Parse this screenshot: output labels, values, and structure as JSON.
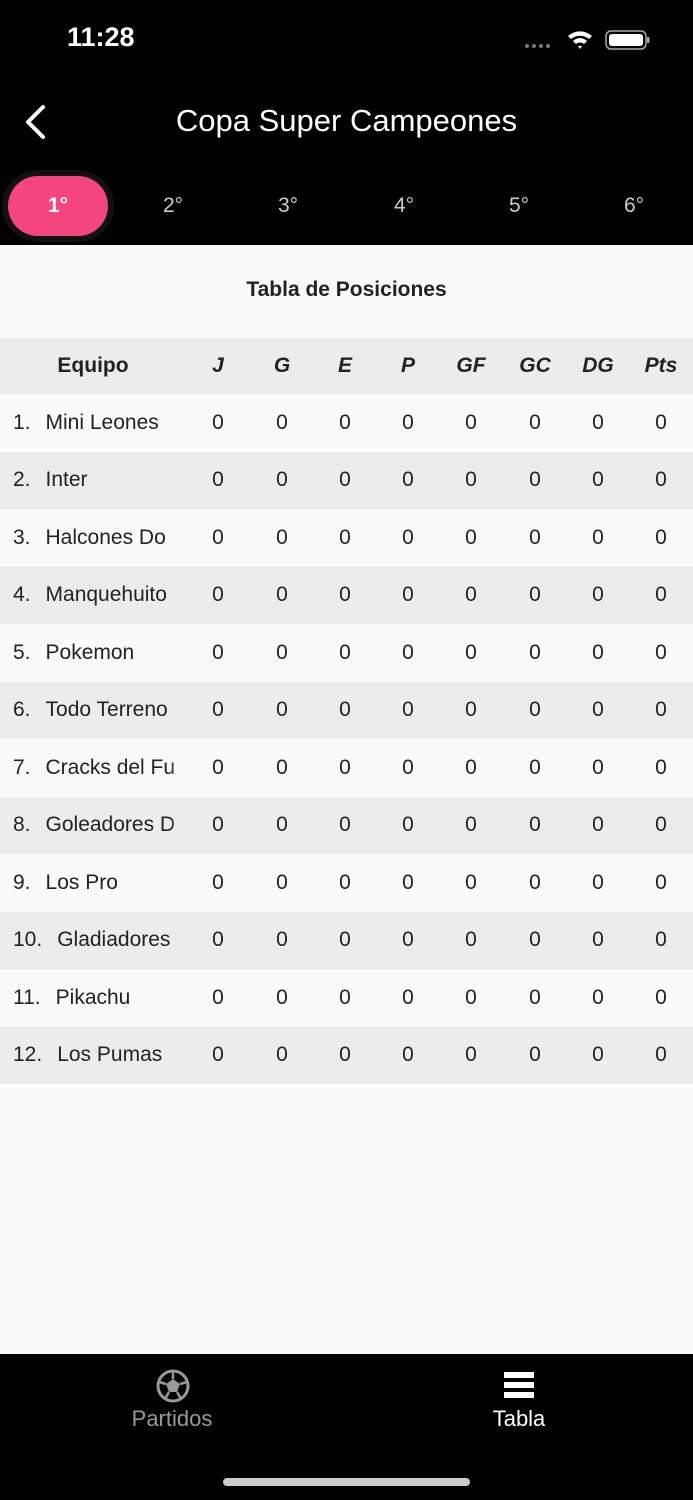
{
  "status_bar": {
    "time": "11:28"
  },
  "header": {
    "title": "Copa Super Campeones"
  },
  "tabs": {
    "items": [
      "1°",
      "2°",
      "3°",
      "4°",
      "5°",
      "6°"
    ],
    "active": 0
  },
  "table": {
    "title": "Tabla de Posiciones",
    "columns": [
      "Equipo",
      "J",
      "G",
      "E",
      "P",
      "GF",
      "GC",
      "DG",
      "Pts"
    ],
    "rows": [
      {
        "rank": "1.",
        "team": "Mini Leones",
        "stats": [
          0,
          0,
          0,
          0,
          0,
          0,
          0,
          0
        ]
      },
      {
        "rank": "2.",
        "team": "Inter",
        "stats": [
          0,
          0,
          0,
          0,
          0,
          0,
          0,
          0
        ]
      },
      {
        "rank": "3.",
        "team": "Halcones Do",
        "stats": [
          0,
          0,
          0,
          0,
          0,
          0,
          0,
          0
        ]
      },
      {
        "rank": "4.",
        "team": "Manquehuito",
        "stats": [
          0,
          0,
          0,
          0,
          0,
          0,
          0,
          0
        ]
      },
      {
        "rank": "5.",
        "team": "Pokemon",
        "stats": [
          0,
          0,
          0,
          0,
          0,
          0,
          0,
          0
        ]
      },
      {
        "rank": "6.",
        "team": "Todo Terreno",
        "stats": [
          0,
          0,
          0,
          0,
          0,
          0,
          0,
          0
        ]
      },
      {
        "rank": "7.",
        "team": "Cracks del Fu",
        "stats": [
          0,
          0,
          0,
          0,
          0,
          0,
          0,
          0
        ]
      },
      {
        "rank": "8.",
        "team": "Goleadores D",
        "stats": [
          0,
          0,
          0,
          0,
          0,
          0,
          0,
          0
        ]
      },
      {
        "rank": "9.",
        "team": "Los Pro",
        "stats": [
          0,
          0,
          0,
          0,
          0,
          0,
          0,
          0
        ]
      },
      {
        "rank": "10.",
        "team": "Gladiadores",
        "stats": [
          0,
          0,
          0,
          0,
          0,
          0,
          0,
          0
        ]
      },
      {
        "rank": "11.",
        "team": "Pikachu",
        "stats": [
          0,
          0,
          0,
          0,
          0,
          0,
          0,
          0
        ]
      },
      {
        "rank": "12.",
        "team": "Los Pumas",
        "stats": [
          0,
          0,
          0,
          0,
          0,
          0,
          0,
          0
        ]
      }
    ]
  },
  "bottom_nav": {
    "items": [
      "Partidos",
      "Tabla"
    ],
    "active": 1
  }
}
